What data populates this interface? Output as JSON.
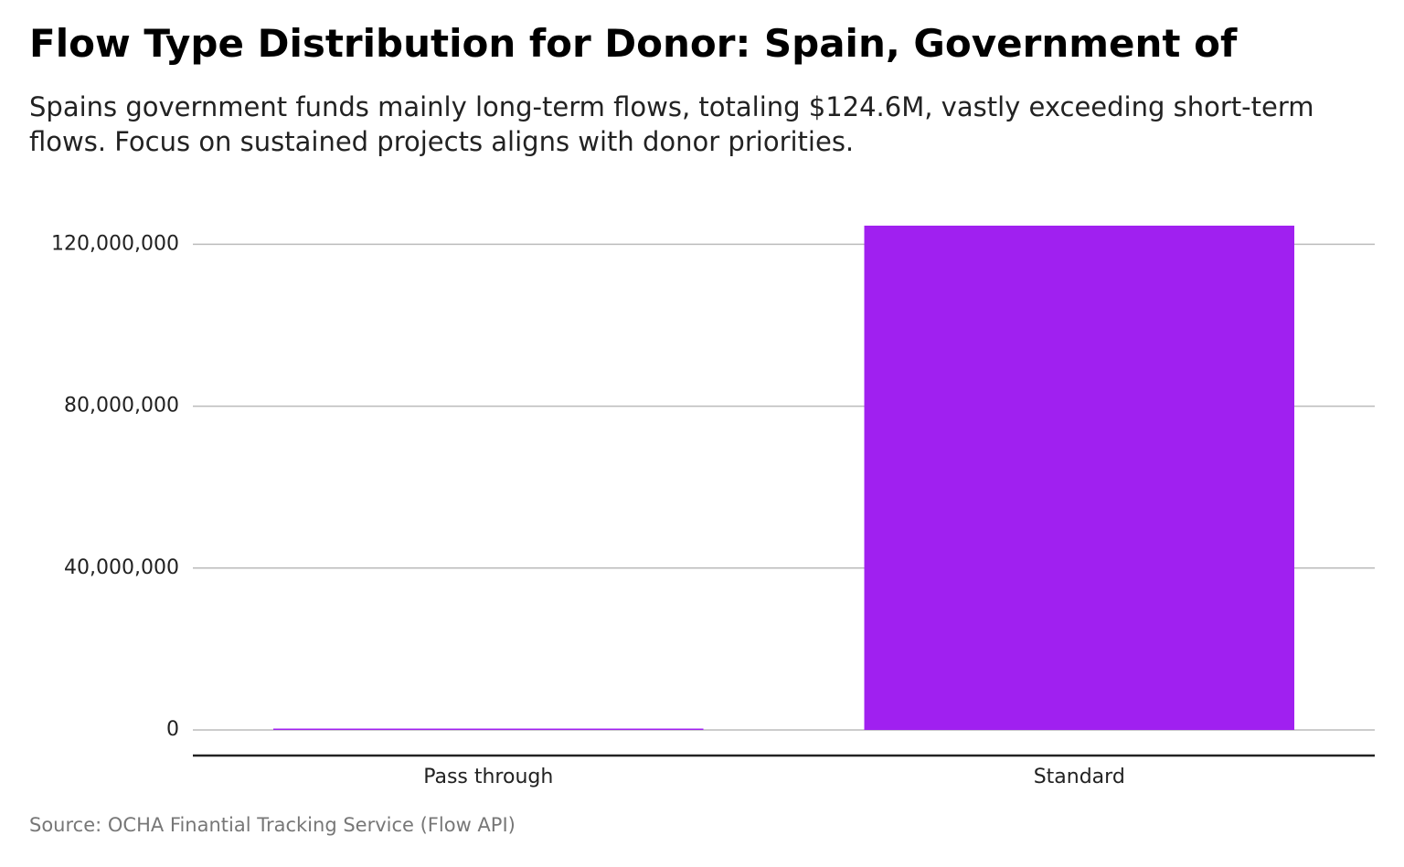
{
  "title": "Flow Type Distribution for Donor: Spain, Government of",
  "subtitle": "Spains government funds mainly long-term flows, totaling $124.6M, vastly exceeding short-term flows. Focus on sustained projects aligns with donor priorities.",
  "source": "Source: OCHA Finantial Tracking Service (Flow API)",
  "colors": {
    "bar": "#a020f0",
    "grid": "#bbbbbb",
    "axis": "#222222"
  },
  "chart_data": {
    "type": "bar",
    "categories": [
      "Pass through",
      "Standard"
    ],
    "values": [
      250000,
      124600000
    ],
    "ylim": [
      0,
      124600000
    ],
    "yticks": [
      0,
      40000000,
      80000000,
      120000000
    ],
    "ytick_labels": [
      "0",
      "40,000,000",
      "80,000,000",
      "120,000,000"
    ],
    "xlabel": "",
    "ylabel": "",
    "grid": "horizontal",
    "legend": "none"
  }
}
